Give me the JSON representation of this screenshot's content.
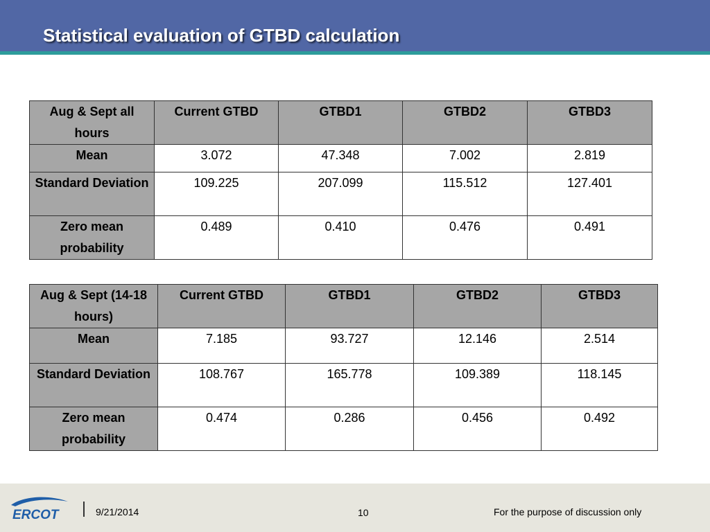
{
  "slide": {
    "title": "Statistical evaluation of GTBD calculation",
    "colors": {
      "header": "#5167a5",
      "stripe": "#2d9c9b",
      "cell_header": "#a6a6a6",
      "footer": "#e7e6de"
    }
  },
  "table1": {
    "headers": [
      "Aug & Sept  all hours",
      "Current  GTBD",
      "GTBD1",
      "GTBD2",
      "GTBD3"
    ],
    "rows": [
      {
        "label": "Mean",
        "values": [
          "3.072",
          "47.348",
          "7.002",
          "2.819"
        ]
      },
      {
        "label": "Standard Deviation",
        "values": [
          "109.225",
          "207.099",
          "115.512",
          "127.401"
        ]
      },
      {
        "label": "Zero mean probability",
        "values": [
          "0.489",
          "0.410",
          "0.476",
          "0.491"
        ]
      }
    ]
  },
  "table2": {
    "headers": [
      "Aug & Sept  (14-18 hours)",
      "Current  GTBD",
      "GTBD1",
      "GTBD2",
      "GTBD3"
    ],
    "rows": [
      {
        "label": "Mean",
        "values": [
          "7.185",
          "93.727",
          "12.146",
          "2.514"
        ]
      },
      {
        "label": "Standard Deviation",
        "values": [
          "108.767",
          "165.778",
          "109.389",
          "118.145"
        ]
      },
      {
        "label": "Zero mean probability",
        "values": [
          "0.474",
          "0.286",
          "0.456",
          "0.492"
        ]
      }
    ]
  },
  "footer": {
    "logo_text": "ERCOT",
    "date": "9/21/2014",
    "page_number": "10",
    "note": "For the purpose of discussion only"
  }
}
